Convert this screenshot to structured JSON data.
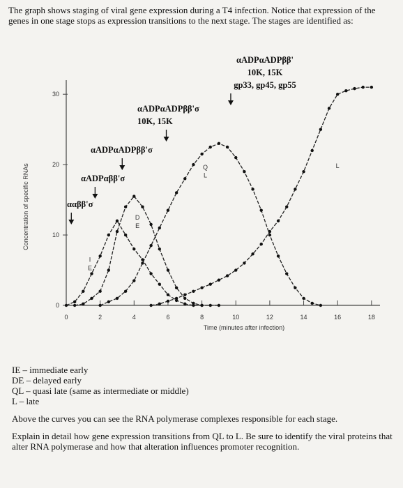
{
  "intro_text": "The graph shows staging of viral gene expression during a T4 infection. Notice that expression of the genes in one stage stops as expression transitions to the next stage. The stages are identified as:",
  "chart_data": {
    "type": "line",
    "xlabel": "Time (minutes after infection)",
    "ylabel": "Concentration of specific RNAs",
    "x_ticks": [
      "0",
      "2",
      "4",
      "6",
      "8",
      "10",
      "12",
      "14",
      "16",
      "18"
    ],
    "y_ticks": [
      "0",
      "10",
      "20",
      "30"
    ],
    "xlim": [
      0,
      18.5
    ],
    "ylim": [
      0,
      32
    ],
    "series": [
      {
        "name": "IE",
        "x": [
          0,
          0.5,
          1,
          1.5,
          2,
          2.5,
          3,
          3.5,
          4,
          4.5,
          5,
          5.5,
          6,
          6.5,
          7,
          7.5,
          8
        ],
        "y": [
          0,
          0.5,
          2,
          4.5,
          7,
          10,
          12,
          10,
          8,
          6.5,
          4.5,
          3,
          1.5,
          0.7,
          0.2,
          0,
          0
        ]
      },
      {
        "name": "DE",
        "x": [
          0.5,
          1,
          1.5,
          2,
          2.5,
          3,
          3.5,
          4,
          4.5,
          5,
          5.5,
          6,
          6.5,
          7,
          7.5,
          8,
          8.5,
          9
        ],
        "y": [
          0,
          0.2,
          1,
          2,
          5,
          10.5,
          14,
          15.5,
          14,
          11.5,
          8,
          5,
          2.5,
          1,
          0.3,
          0,
          0,
          0
        ]
      },
      {
        "name": "QL",
        "x": [
          2,
          2.5,
          3,
          3.5,
          4,
          4.5,
          5,
          5.5,
          6,
          6.5,
          7,
          7.5,
          8,
          8.5,
          9,
          9.5,
          10,
          10.5,
          11,
          11.5,
          12,
          12.5,
          13,
          13.5,
          14,
          14.5,
          15
        ],
        "y": [
          0,
          0.5,
          1,
          2,
          3.5,
          6,
          8.5,
          11,
          13.5,
          16,
          18,
          20,
          21.5,
          22.5,
          23,
          22.5,
          21,
          19,
          16.5,
          13.5,
          10,
          7,
          4.5,
          2.5,
          1,
          0.3,
          0
        ]
      },
      {
        "name": "L",
        "x": [
          5,
          5.5,
          6,
          6.5,
          7,
          7.5,
          8,
          8.5,
          9,
          9.5,
          10,
          10.5,
          11,
          11.5,
          12,
          12.5,
          13,
          13.5,
          14,
          14.5,
          15,
          15.5,
          16,
          16.5,
          17,
          17.5,
          18
        ],
        "y": [
          0,
          0.2,
          0.6,
          1,
          1.5,
          2,
          2.5,
          3,
          3.6,
          4.2,
          5,
          6,
          7.3,
          8.7,
          10.5,
          12,
          14,
          16.5,
          19,
          22,
          25,
          28,
          30,
          30.5,
          30.8,
          31,
          31
        ]
      }
    ],
    "curve_labels": [
      {
        "text": "I",
        "x": 1.4,
        "y": 6.2
      },
      {
        "text": "E",
        "x": 1.4,
        "y": 5.0
      },
      {
        "text": "D",
        "x": 4.2,
        "y": 12.2
      },
      {
        "text": "E",
        "x": 4.2,
        "y": 11.0
      },
      {
        "text": "Q",
        "x": 8.2,
        "y": 19.3
      },
      {
        "text": "L",
        "x": 8.2,
        "y": 18.2
      },
      {
        "text": "L",
        "x": 16.0,
        "y": 19.5
      }
    ],
    "complexes": [
      {
        "lines": [
          "ααββ'σ"
        ],
        "arrow_x": 0.3
      },
      {
        "lines": [
          "αADPαββ'σ"
        ],
        "arrow_x": 1.7
      },
      {
        "lines": [
          "αADPαADPββ'σ"
        ],
        "arrow_x": 3.3
      },
      {
        "lines": [
          "αADPαADPββ'σ",
          "10K, 15K"
        ],
        "arrow_x": 5.9
      },
      {
        "lines": [
          "αADPαADPββ'",
          "10K, 15K",
          "gp33, gp45, gp55"
        ],
        "arrow_x": 9.7
      }
    ]
  },
  "stages": [
    "IE – immediate early",
    "DE – delayed early",
    "QL – quasi late (same as intermediate or middle)",
    "L – late"
  ],
  "paragraph_1": "Above the curves you can see the RNA polymerase complexes responsible for each stage.",
  "paragraph_2": "Explain in detail how gene expression transitions from QL to L. Be sure to identify the viral proteins that alter RNA polymerase and how that alteration influences promoter recognition."
}
